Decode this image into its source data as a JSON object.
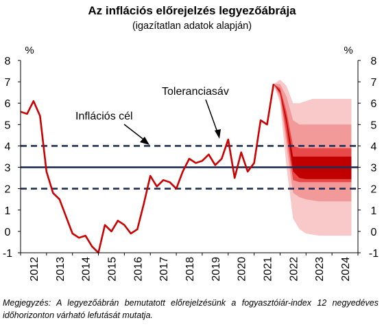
{
  "title": "Az inflációs előrejelzés legyezőábrája",
  "subtitle": "(igazítatlan adatok alapján)",
  "note": "Megjegyzés: A legyezőábrán bemutatott előrejelzésünk a fogyasztóiár-index 12 negyedéves időhorizonton várható lefutását mutatja.",
  "colors": {
    "history_line": "#cc0000",
    "fan_outer": "#f9c9c9",
    "fan_middle": "#f29a9a",
    "fan_inner": "#e84a4a",
    "fan_core": "#c00000",
    "target_line": "#1f2f57",
    "band_line": "#1f2f57"
  },
  "chart_data": {
    "type": "area",
    "title": "Az inflációs előrejelzés legyezőábrája",
    "subtitle": "(igazítatlan adatok alapján)",
    "ylabel_left": "%",
    "ylabel_right": "%",
    "ylim": [
      -1,
      8
    ],
    "y_ticks": [
      -1,
      0,
      1,
      2,
      3,
      4,
      5,
      6,
      7,
      8
    ],
    "xlim": [
      2012.0,
      2025.0
    ],
    "x_ticks": [
      "2012",
      "2013",
      "2014",
      "2015",
      "2016",
      "2017",
      "2018",
      "2019",
      "2020",
      "2021",
      "2022",
      "2023",
      "2024"
    ],
    "inflation_target": 3.0,
    "tolerance_band": [
      2.0,
      4.0
    ],
    "annotations": [
      "Inflációs cél",
      "Toleranciasáv"
    ],
    "grid": false,
    "history": {
      "x": [
        2012.0,
        2012.25,
        2012.5,
        2012.75,
        2013.0,
        2013.25,
        2013.5,
        2013.75,
        2014.0,
        2014.25,
        2014.5,
        2014.75,
        2015.0,
        2015.25,
        2015.5,
        2015.75,
        2016.0,
        2016.25,
        2016.5,
        2016.75,
        2017.0,
        2017.25,
        2017.5,
        2017.75,
        2018.0,
        2018.25,
        2018.5,
        2018.75,
        2019.0,
        2019.25,
        2019.5,
        2019.75,
        2020.0,
        2020.25,
        2020.5,
        2020.75,
        2021.0,
        2021.25,
        2021.5,
        2021.75
      ],
      "y": [
        5.6,
        5.5,
        6.1,
        5.4,
        2.8,
        1.8,
        1.5,
        0.7,
        -0.1,
        -0.3,
        -0.2,
        -0.7,
        -1.0,
        0.3,
        0.0,
        0.5,
        0.3,
        -0.1,
        0.1,
        1.3,
        2.6,
        2.1,
        2.4,
        2.3,
        2.0,
        2.8,
        3.4,
        3.2,
        3.3,
        3.6,
        3.1,
        3.4,
        4.3,
        2.5,
        3.7,
        2.8,
        3.2,
        5.2,
        5.0,
        6.9
      ]
    },
    "fan": {
      "x": [
        2021.75,
        2022.0,
        2022.25,
        2022.5,
        2022.75,
        2023.0,
        2023.25,
        2023.5,
        2023.75,
        2024.0,
        2024.25,
        2024.5,
        2024.75
      ],
      "bands": [
        {
          "name": "outer",
          "lower": [
            6.9,
            6.0,
            3.0,
            0.6,
            0.1,
            -0.1,
            -0.15,
            -0.2,
            -0.2,
            -0.2,
            -0.2,
            -0.2,
            -0.2
          ],
          "upper": [
            6.9,
            7.1,
            6.8,
            6.0,
            6.0,
            6.1,
            6.2,
            6.2,
            6.2,
            6.2,
            6.2,
            6.2,
            6.2
          ]
        },
        {
          "name": "middle",
          "lower": [
            6.9,
            6.2,
            4.0,
            1.8,
            1.6,
            1.5,
            1.45,
            1.4,
            1.4,
            1.4,
            1.4,
            1.4,
            1.4
          ],
          "upper": [
            6.9,
            6.9,
            6.3,
            5.2,
            5.0,
            5.0,
            5.0,
            5.0,
            5.0,
            5.0,
            5.0,
            5.0,
            5.0
          ]
        },
        {
          "name": "inner",
          "lower": [
            6.9,
            6.4,
            4.5,
            2.4,
            2.3,
            2.3,
            2.3,
            2.3,
            2.3,
            2.3,
            2.3,
            2.3,
            2.3
          ],
          "upper": [
            6.9,
            6.7,
            5.6,
            4.0,
            3.9,
            3.9,
            3.9,
            3.9,
            3.9,
            3.9,
            3.9,
            3.9,
            3.9
          ]
        },
        {
          "name": "core",
          "lower": [
            6.9,
            6.5,
            5.0,
            2.8,
            2.5,
            2.45,
            2.45,
            2.45,
            2.45,
            2.45,
            2.45,
            2.45,
            2.45
          ],
          "upper": [
            6.9,
            6.6,
            5.3,
            3.5,
            3.5,
            3.5,
            3.5,
            3.5,
            3.5,
            3.5,
            3.5,
            3.5,
            3.5
          ]
        }
      ]
    }
  }
}
